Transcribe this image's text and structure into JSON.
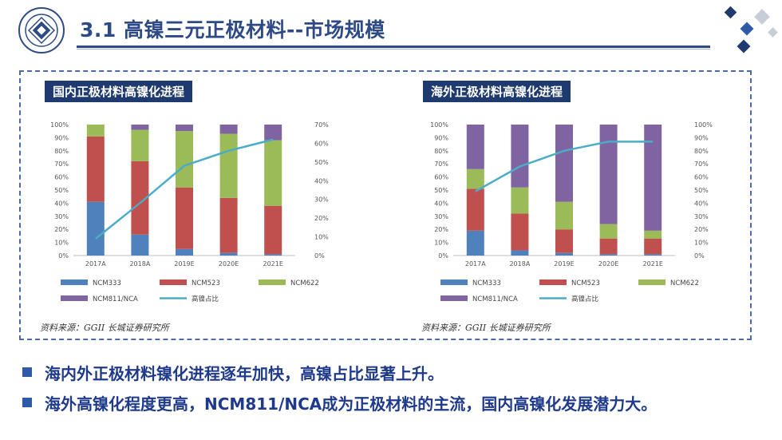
{
  "header": {
    "title": "3.1 高镍三元正极材料--市场规模",
    "logo_icon": "university-seal-icon",
    "accent_color": "#2e4a86"
  },
  "charts": [
    {
      "panel_title": "国内正极材料高镍化进程",
      "source": "资料来源：GGII 长城证券研究所"
    },
    {
      "panel_title": "海外正极材料高镍化进程",
      "source": "资料来源：GGII 长城证券研究所"
    }
  ],
  "chart_data": [
    {
      "type": "bar",
      "stacked": true,
      "categories": [
        "2017A",
        "2018A",
        "2019E",
        "2020E",
        "2021E"
      ],
      "ylim": [
        0,
        100
      ],
      "yticks": [
        "0%",
        "10%",
        "20%",
        "30%",
        "40%",
        "50%",
        "60%",
        "70%",
        "80%",
        "90%",
        "100%"
      ],
      "y2lim": [
        0,
        70
      ],
      "y2ticks": [
        "0%",
        "10%",
        "20%",
        "30%",
        "40%",
        "50%",
        "60%",
        "70%"
      ],
      "series": [
        {
          "name": "NCM333",
          "color": "#4f81bd",
          "values": [
            41,
            16,
            5,
            2,
            1
          ]
        },
        {
          "name": "NCM523",
          "color": "#c0504d",
          "values": [
            50,
            56,
            47,
            42,
            37
          ]
        },
        {
          "name": "NCM622",
          "color": "#9bbb59",
          "values": [
            9,
            24,
            43,
            49,
            50
          ]
        },
        {
          "name": "NCM811/NCA",
          "color": "#8064a2",
          "values": [
            0,
            4,
            5,
            7,
            12
          ]
        }
      ],
      "line": {
        "name": "高镍占比",
        "color": "#4bacc6",
        "axis": "right",
        "values": [
          9,
          28,
          48,
          56,
          62
        ]
      },
      "legend": "bottom"
    },
    {
      "type": "bar",
      "stacked": true,
      "categories": [
        "2017A",
        "2018A",
        "2019E",
        "2020E",
        "2021E"
      ],
      "ylim": [
        0,
        100
      ],
      "yticks": [
        "0%",
        "10%",
        "20%",
        "30%",
        "40%",
        "50%",
        "60%",
        "70%",
        "80%",
        "90%",
        "100%"
      ],
      "y2lim": [
        0,
        100
      ],
      "y2ticks": [
        "0%",
        "10%",
        "20%",
        "30%",
        "40%",
        "50%",
        "60%",
        "70%",
        "80%",
        "90%",
        "100%"
      ],
      "series": [
        {
          "name": "NCM333",
          "color": "#4f81bd",
          "values": [
            19,
            4,
            2,
            1,
            1
          ]
        },
        {
          "name": "NCM523",
          "color": "#c0504d",
          "values": [
            32,
            28,
            18,
            12,
            12
          ]
        },
        {
          "name": "NCM622",
          "color": "#9bbb59",
          "values": [
            15,
            20,
            21,
            11,
            6
          ]
        },
        {
          "name": "NCM811/NCA",
          "color": "#8064a2",
          "values": [
            34,
            48,
            59,
            76,
            81
          ]
        }
      ],
      "line": {
        "name": "高镍占比",
        "color": "#4bacc6",
        "axis": "right",
        "values": [
          49,
          68,
          80,
          87,
          87
        ]
      },
      "legend": "bottom"
    }
  ],
  "bullets": [
    "海内外正极材料镍化进程逐年加快，高镍占比显著上升。",
    "海外高镍化程度更高，NCM811/NCA成为正极材料的主流，国内高镍化发展潜力大。"
  ]
}
